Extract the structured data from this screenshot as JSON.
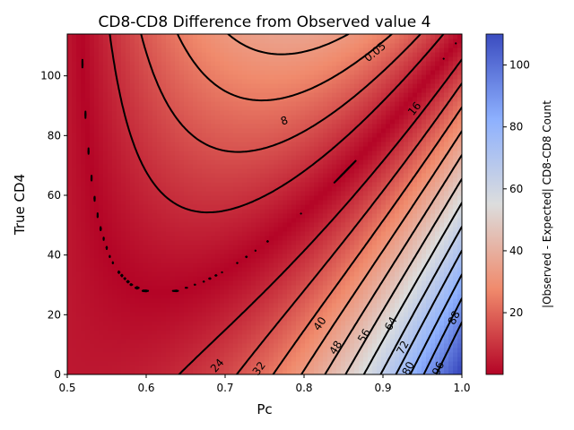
{
  "chart_data": {
    "type": "heatmap",
    "title": "CD8-CD8 Difference from Observed value 4",
    "xlabel": "Pc",
    "ylabel": "True CD4",
    "colorbar_label": "|Observed - Expected| CD8-CD8 Count",
    "xlim": [
      0.5,
      1.0
    ],
    "ylim": [
      0,
      114
    ],
    "x_ticks": [
      0.5,
      0.6,
      0.7,
      0.8,
      0.9,
      1.0
    ],
    "x_tick_labels": [
      "0.5",
      "0.6",
      "0.7",
      "0.8",
      "0.9",
      "1.0"
    ],
    "y_ticks": [
      0,
      20,
      40,
      60,
      80,
      100
    ],
    "y_tick_labels": [
      "0",
      "20",
      "40",
      "60",
      "80",
      "100"
    ],
    "colorbar_range": [
      0.05,
      110
    ],
    "colorbar_ticks": [
      20,
      40,
      60,
      80,
      100
    ],
    "colorbar_tick_labels": [
      "20",
      "40",
      "60",
      "80",
      "100"
    ],
    "colormap": "coolwarm_r",
    "grid": false,
    "contour_levels": [
      {
        "value": 0.05,
        "label": "0.05"
      },
      {
        "value": 8,
        "label": "8"
      },
      {
        "value": 16,
        "label": "16"
      },
      {
        "value": 24,
        "label": "24"
      },
      {
        "value": 32,
        "label": "32"
      },
      {
        "value": 40,
        "label": "40"
      },
      {
        "value": 48,
        "label": "48"
      },
      {
        "value": 56,
        "label": "56"
      },
      {
        "value": 64,
        "label": "64"
      },
      {
        "value": 72,
        "label": "72"
      },
      {
        "value": 80,
        "label": "80"
      },
      {
        "value": 88,
        "label": "88"
      },
      {
        "value": 96,
        "label": "96"
      }
    ],
    "contour_label_positions": [
      {
        "label": "0.05",
        "x": 0.89,
        "y": 108
      },
      {
        "label": "8",
        "x": 0.775,
        "y": 85
      },
      {
        "label": "16",
        "x": 0.94,
        "y": 89
      },
      {
        "label": "24",
        "x": 0.69,
        "y": 3
      },
      {
        "label": "32",
        "x": 0.743,
        "y": 2
      },
      {
        "label": "40",
        "x": 0.82,
        "y": 17
      },
      {
        "label": "48",
        "x": 0.84,
        "y": 9
      },
      {
        "label": "56",
        "x": 0.876,
        "y": 13
      },
      {
        "label": "64",
        "x": 0.91,
        "y": 17
      },
      {
        "label": "72",
        "x": 0.925,
        "y": 9
      },
      {
        "label": "80",
        "x": 0.932,
        "y": 2
      },
      {
        "label": "88",
        "x": 0.99,
        "y": 19
      },
      {
        "label": "96",
        "x": 0.97,
        "y": 2
      }
    ]
  }
}
